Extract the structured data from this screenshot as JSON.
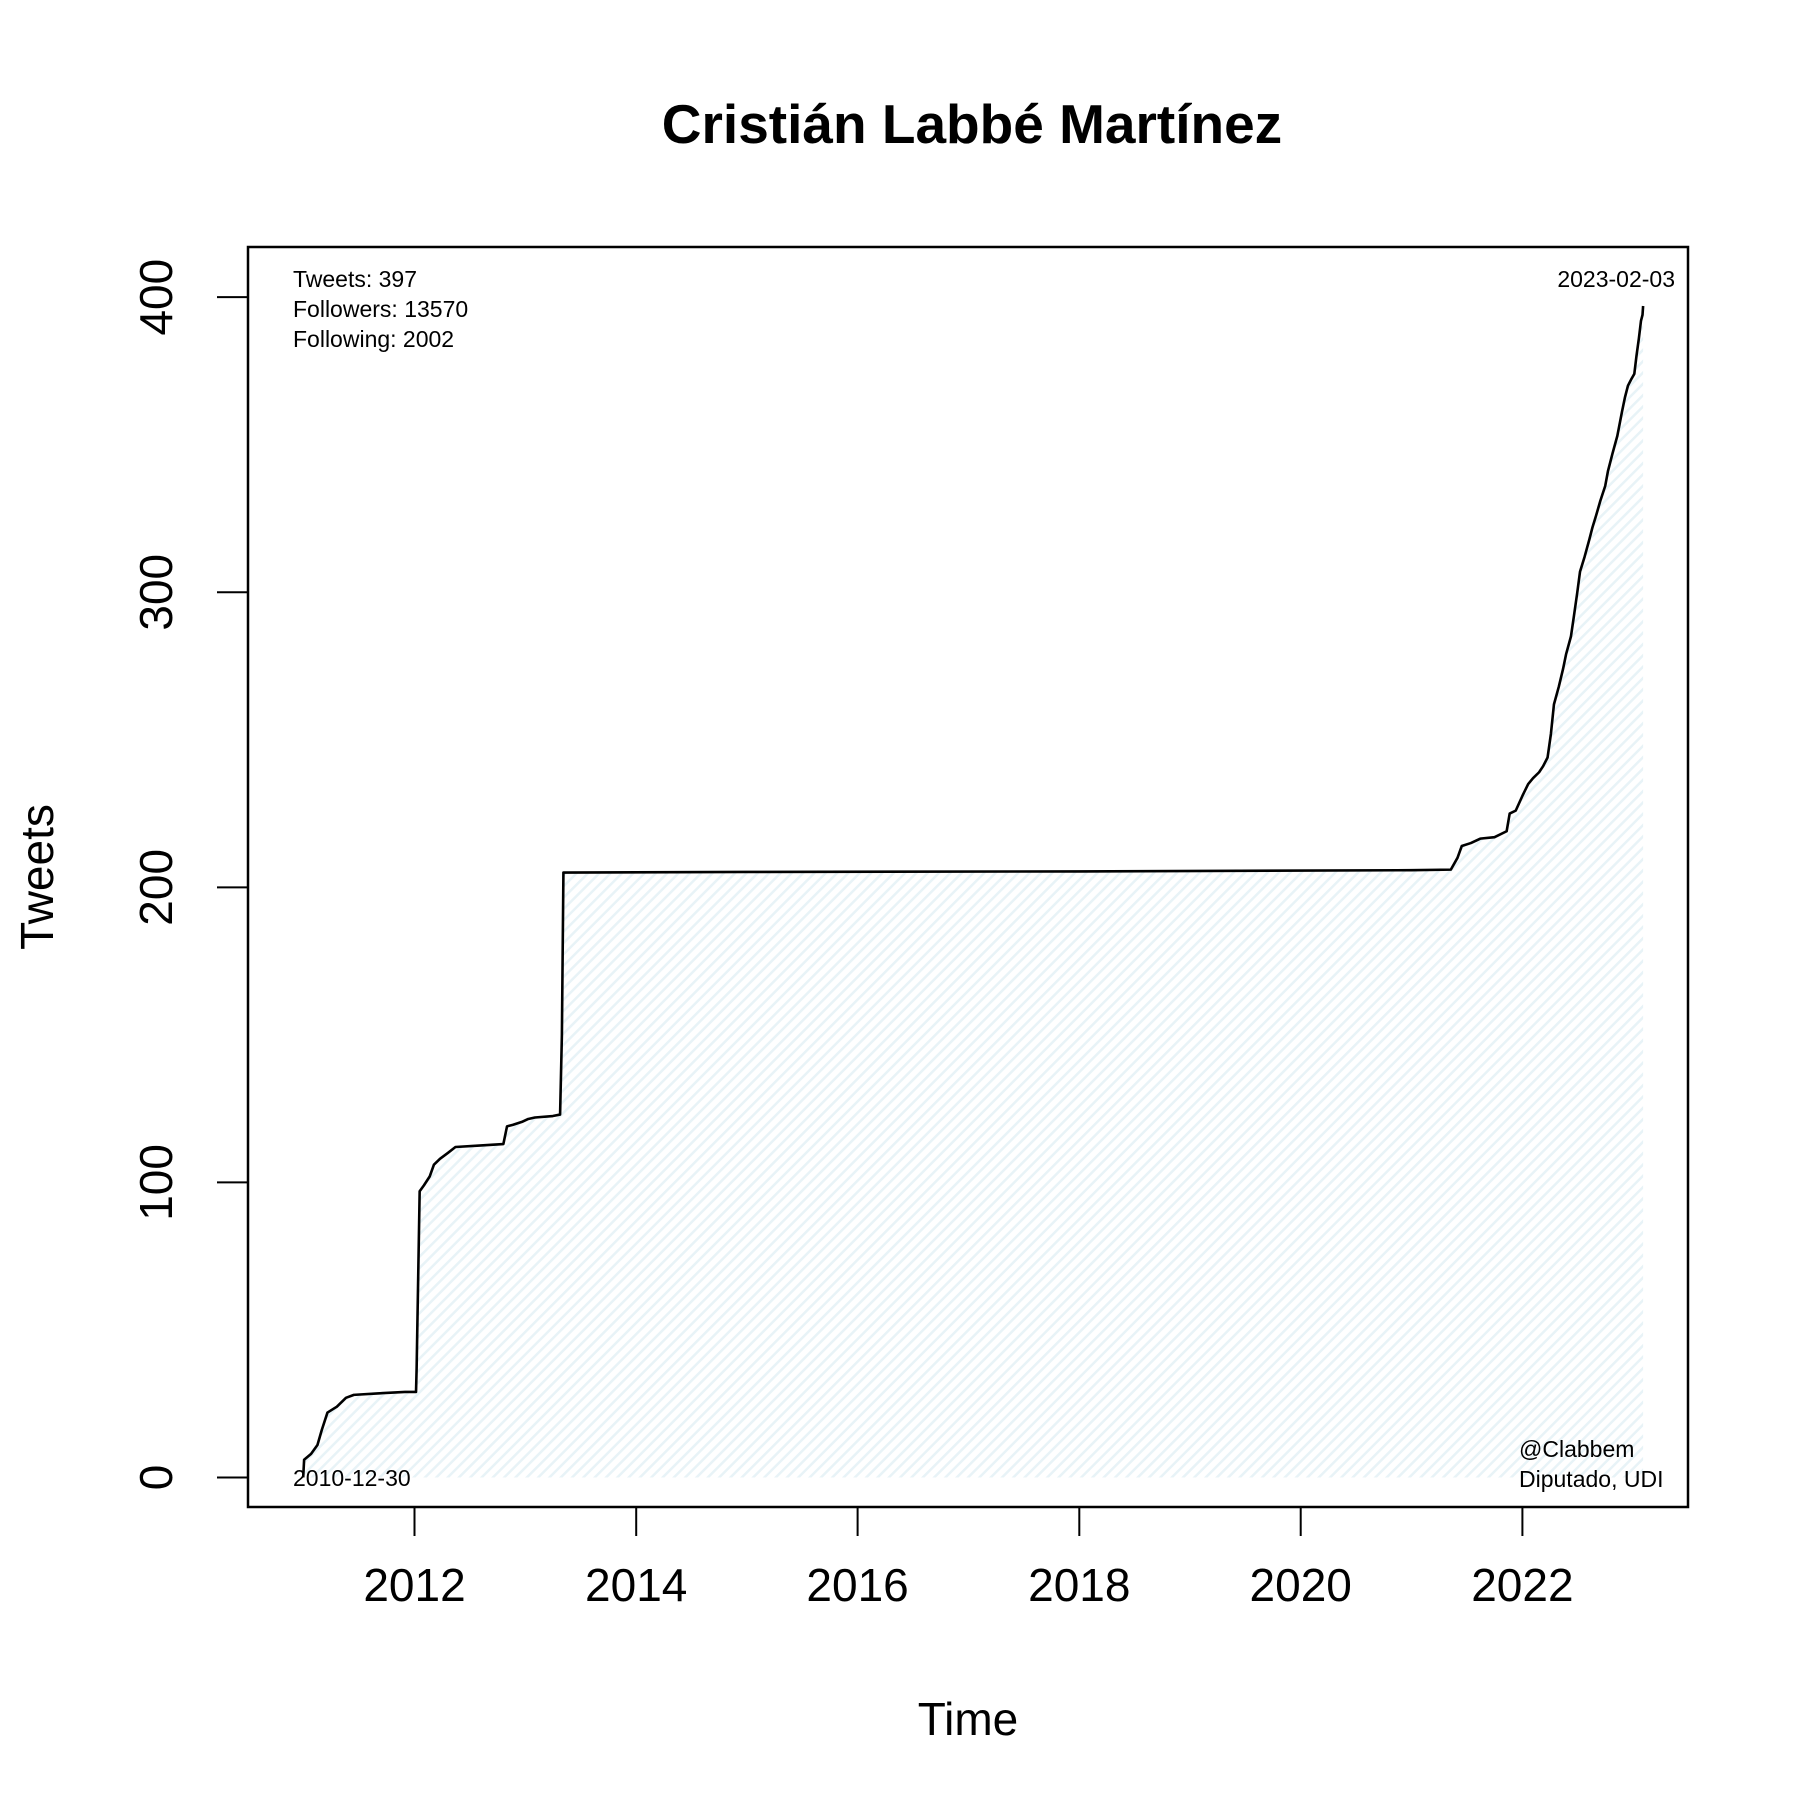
{
  "chart_data": {
    "type": "area",
    "title": "Cristián Labbé Martínez",
    "xlabel": "Time",
    "ylabel": "Tweets",
    "xlim": [
      "2010-07-01",
      "2023-07-01"
    ],
    "ylim": [
      -10,
      417
    ],
    "xticks": [
      {
        "date": "2012-01-01",
        "label": "2012"
      },
      {
        "date": "2014-01-01",
        "label": "2014"
      },
      {
        "date": "2016-01-01",
        "label": "2016"
      },
      {
        "date": "2018-01-01",
        "label": "2018"
      },
      {
        "date": "2020-01-01",
        "label": "2020"
      },
      {
        "date": "2022-01-01",
        "label": "2022"
      }
    ],
    "yticks": [
      0,
      100,
      200,
      300,
      400
    ],
    "grid": false,
    "fill_color": "#e8f3f7",
    "line_color": "#000000",
    "series": [
      {
        "points": [
          [
            "2010-12-30",
            0
          ],
          [
            "2011-01-02",
            6
          ],
          [
            "2011-01-25",
            8
          ],
          [
            "2011-02-15",
            11
          ],
          [
            "2011-03-01",
            16
          ],
          [
            "2011-03-20",
            22
          ],
          [
            "2011-04-20",
            24
          ],
          [
            "2011-05-20",
            27
          ],
          [
            "2011-06-15",
            28
          ],
          [
            "2011-09-01",
            28.5
          ],
          [
            "2011-12-01",
            29
          ],
          [
            "2012-01-06",
            29
          ],
          [
            "2012-01-08",
            37
          ],
          [
            "2012-01-18",
            97
          ],
          [
            "2012-02-01",
            99
          ],
          [
            "2012-02-20",
            102
          ],
          [
            "2012-03-05",
            106
          ],
          [
            "2012-03-25",
            108
          ],
          [
            "2012-04-20",
            110
          ],
          [
            "2012-05-15",
            112
          ],
          [
            "2012-08-01",
            112.5
          ],
          [
            "2012-10-20",
            113
          ],
          [
            "2012-11-01",
            119
          ],
          [
            "2012-11-20",
            119.5
          ],
          [
            "2012-12-20",
            120.5
          ],
          [
            "2013-01-10",
            121.5
          ],
          [
            "2013-02-01",
            122
          ],
          [
            "2013-04-01",
            122.5
          ],
          [
            "2013-04-25",
            123
          ],
          [
            "2013-05-01",
            150
          ],
          [
            "2013-05-06",
            205
          ],
          [
            "2015-01-01",
            205.2
          ],
          [
            "2018-01-01",
            205.4
          ],
          [
            "2021-01-01",
            205.8
          ],
          [
            "2021-05-10",
            206
          ],
          [
            "2021-06-01",
            210
          ],
          [
            "2021-06-15",
            214
          ],
          [
            "2021-07-15",
            215
          ],
          [
            "2021-08-15",
            216.5
          ],
          [
            "2021-10-01",
            217
          ],
          [
            "2021-11-10",
            219
          ],
          [
            "2021-11-20",
            225
          ],
          [
            "2021-12-10",
            226
          ],
          [
            "2022-01-01",
            231
          ],
          [
            "2022-01-20",
            235
          ],
          [
            "2022-02-05",
            237
          ],
          [
            "2022-02-25",
            239
          ],
          [
            "2022-03-10",
            241
          ],
          [
            "2022-03-25",
            244
          ],
          [
            "2022-04-05",
            252
          ],
          [
            "2022-04-15",
            262
          ],
          [
            "2022-05-01",
            268
          ],
          [
            "2022-05-15",
            274
          ],
          [
            "2022-05-25",
            279
          ],
          [
            "2022-06-10",
            285
          ],
          [
            "2022-06-20",
            292
          ],
          [
            "2022-07-01",
            300
          ],
          [
            "2022-07-10",
            307
          ],
          [
            "2022-07-25",
            312
          ],
          [
            "2022-08-10",
            318
          ],
          [
            "2022-08-20",
            322
          ],
          [
            "2022-09-01",
            326
          ],
          [
            "2022-09-15",
            331
          ],
          [
            "2022-10-01",
            336
          ],
          [
            "2022-10-10",
            341
          ],
          [
            "2022-10-25",
            347
          ],
          [
            "2022-11-10",
            353
          ],
          [
            "2022-11-25",
            361
          ],
          [
            "2022-12-05",
            366
          ],
          [
            "2022-12-15",
            370
          ],
          [
            "2022-12-25",
            372
          ],
          [
            "2023-01-05",
            374
          ],
          [
            "2023-01-12",
            380
          ],
          [
            "2023-01-20",
            386
          ],
          [
            "2023-01-27",
            392
          ],
          [
            "2023-02-01",
            394
          ],
          [
            "2023-02-03",
            397
          ]
        ]
      }
    ],
    "annotations": {
      "stats": [
        "Tweets: 397",
        "Followers: 13570",
        "Following: 2002"
      ],
      "start_date": "2010-12-30",
      "end_date": "2023-02-03",
      "handle": "@Clabbem",
      "role": "Diputado, UDI"
    }
  }
}
